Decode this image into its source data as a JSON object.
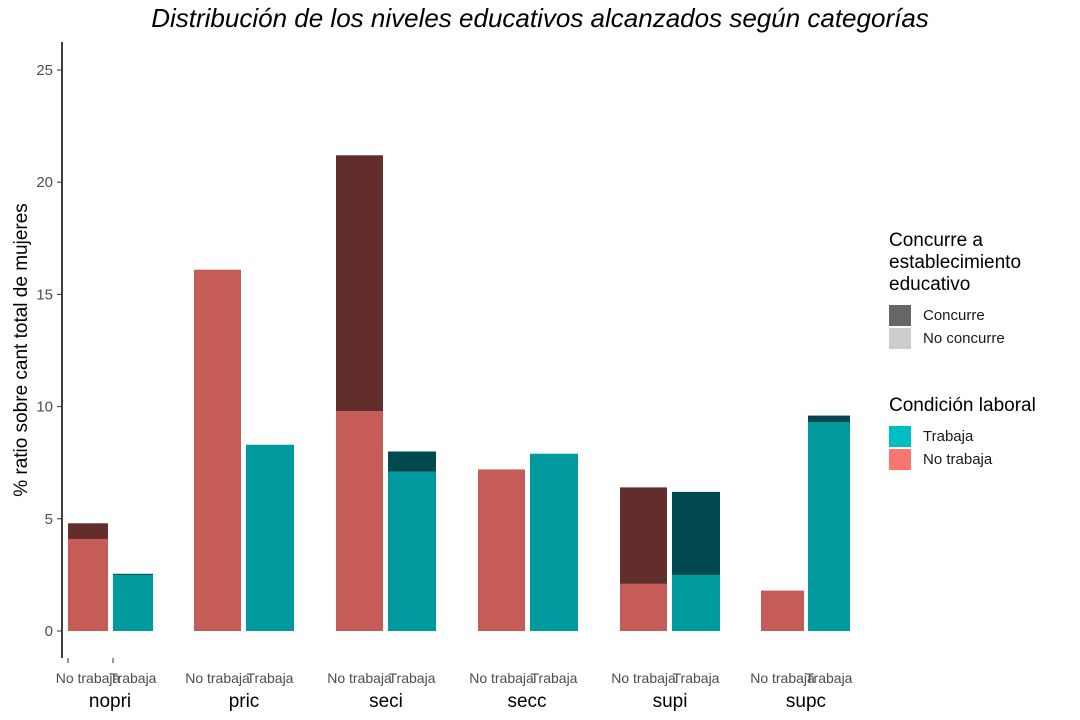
{
  "chart_data": {
    "type": "bar",
    "title": "Distribución de los niveles educativos alcanzados según categorías",
    "ylabel": "%   ratio sobre cant total de mujeres",
    "ylim": [
      0,
      25
    ],
    "yticks": [
      0,
      5,
      10,
      15,
      20,
      25
    ],
    "groups": [
      "nopri",
      "pric",
      "seci",
      "secc",
      "supi",
      "supc"
    ],
    "bar_labels": [
      "No trabaja",
      "Trabaja"
    ],
    "bars": [
      {
        "group": "nopri",
        "label": "No trabaja",
        "no_concurre": 4.1,
        "concurre": 0.7
      },
      {
        "group": "nopri",
        "label": "Trabaja",
        "no_concurre": 2.5,
        "concurre": 0.05
      },
      {
        "group": "pric",
        "label": "No trabaja",
        "no_concurre": 16.1,
        "concurre": 0.0
      },
      {
        "group": "pric",
        "label": "Trabaja",
        "no_concurre": 8.3,
        "concurre": 0.0
      },
      {
        "group": "seci",
        "label": "No trabaja",
        "no_concurre": 9.8,
        "concurre": 11.4
      },
      {
        "group": "seci",
        "label": "Trabaja",
        "no_concurre": 7.1,
        "concurre": 0.9
      },
      {
        "group": "secc",
        "label": "No trabaja",
        "no_concurre": 7.2,
        "concurre": 0.0
      },
      {
        "group": "secc",
        "label": "Trabaja",
        "no_concurre": 7.9,
        "concurre": 0.0
      },
      {
        "group": "supi",
        "label": "No trabaja",
        "no_concurre": 2.1,
        "concurre": 4.3
      },
      {
        "group": "supi",
        "label": "Trabaja",
        "no_concurre": 2.5,
        "concurre": 3.7
      },
      {
        "group": "supc",
        "label": "No trabaja",
        "no_concurre": 1.8,
        "concurre": 0.0
      },
      {
        "group": "supc",
        "label": "Trabaja",
        "no_concurre": 9.3,
        "concurre": 0.3
      }
    ],
    "colors": {
      "no_trabaja_no_concurre": "#c55c57",
      "no_trabaja_concurre": "#622e2c",
      "trabaja_no_concurre": "#00999e",
      "trabaja_concurre": "#004a4f"
    },
    "legend": {
      "placement": "right",
      "concurre_title": "Concurre a establecimiento educativo",
      "concurre_title_lines": [
        "Concurre a",
        "establecimiento",
        "educativo"
      ],
      "concurre_items": [
        {
          "label": "Concurre",
          "color": "#666666"
        },
        {
          "label": "No concurre",
          "color": "#cccccc"
        }
      ],
      "laboral_title": "Condición laboral",
      "laboral_items": [
        {
          "label": "Trabaja",
          "color": "#00bfc4"
        },
        {
          "label": "No trabaja",
          "color": "#f8766d"
        }
      ]
    },
    "grid": false
  }
}
